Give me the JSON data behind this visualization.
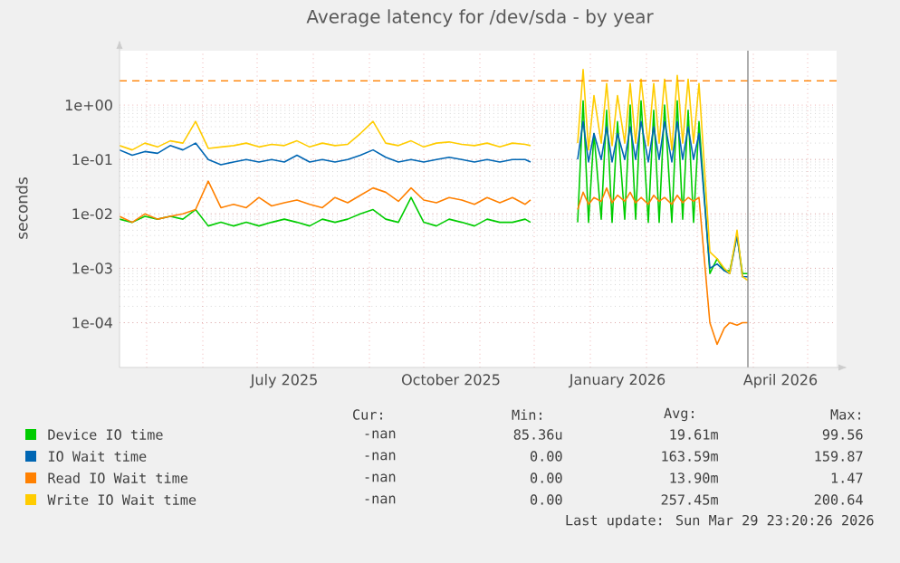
{
  "chart_data": {
    "type": "line",
    "title": "Average latency for /dev/sda - by year",
    "ylabel": "seconds",
    "log": "y",
    "grid": true,
    "legend": "bottom",
    "ylim": [
      1.5e-05,
      10
    ],
    "yticks": [
      {
        "value": 0.0001,
        "label": "1e-04"
      },
      {
        "value": 0.001,
        "label": "1e-03"
      },
      {
        "value": 0.01,
        "label": "1e-02"
      },
      {
        "value": 0.1,
        "label": "1e-01"
      },
      {
        "value": 1,
        "label": "1e+00"
      }
    ],
    "xlim": [
      "2025-04-16",
      "2026-05-17"
    ],
    "xticks": [
      {
        "value": "2025-05-01",
        "label": null
      },
      {
        "value": "2025-06-01",
        "label": null
      },
      {
        "value": "2025-07-01",
        "label": null
      },
      {
        "value": "2025-08-01",
        "label": null
      },
      {
        "value": "2025-09-01",
        "label": null
      },
      {
        "value": "2025-10-01",
        "label": null
      },
      {
        "value": "2025-11-01",
        "label": null
      },
      {
        "value": "2025-12-01",
        "label": null
      },
      {
        "value": "2026-01-01",
        "label": null
      },
      {
        "value": "2026-02-01",
        "label": null
      },
      {
        "value": "2026-03-01",
        "label": null
      },
      {
        "value": "2026-04-01",
        "label": null
      },
      {
        "value": "2026-05-01",
        "label": null
      },
      {
        "value": "2025-07-16",
        "label": "July 2025"
      },
      {
        "value": "2025-10-16",
        "label": "October 2025"
      },
      {
        "value": "2026-01-16",
        "label": "January 2026"
      },
      {
        "value": "2026-04-16",
        "label": "April 2026"
      }
    ],
    "x": [
      "2025-04-16",
      "2025-04-23",
      "2025-04-30",
      "2025-05-07",
      "2025-05-14",
      "2025-05-21",
      "2025-05-28",
      "2025-06-04",
      "2025-06-11",
      "2025-06-18",
      "2025-06-25",
      "2025-07-02",
      "2025-07-09",
      "2025-07-16",
      "2025-07-23",
      "2025-07-30",
      "2025-08-06",
      "2025-08-13",
      "2025-08-20",
      "2025-08-27",
      "2025-09-03",
      "2025-09-10",
      "2025-09-17",
      "2025-09-24",
      "2025-10-01",
      "2025-10-08",
      "2025-10-15",
      "2025-10-22",
      "2025-10-29",
      "2025-11-05",
      "2025-11-12",
      "2025-11-19",
      "2025-11-26",
      "2025-11-29",
      "2025-12-12",
      "2025-12-25",
      "2025-12-28",
      "2025-12-31",
      "2026-01-03",
      "2026-01-07",
      "2026-01-10",
      "2026-01-13",
      "2026-01-16",
      "2026-01-20",
      "2026-01-23",
      "2026-01-26",
      "2026-01-29",
      "2026-02-02",
      "2026-02-05",
      "2026-02-08",
      "2026-02-11",
      "2026-02-15",
      "2026-02-18",
      "2026-02-21",
      "2026-02-24",
      "2026-02-27",
      "2026-03-02",
      "2026-03-08",
      "2026-03-12",
      "2026-03-16",
      "2026-03-19",
      "2026-03-23",
      "2026-03-26",
      "2026-03-29"
    ],
    "series": [
      {
        "name": "Device IO time",
        "color": "#00cc00",
        "values": [
          0.008,
          0.007,
          0.009,
          0.008,
          0.009,
          0.008,
          0.012,
          0.006,
          0.007,
          0.006,
          0.007,
          0.006,
          0.007,
          0.008,
          0.007,
          0.006,
          0.008,
          0.007,
          0.008,
          0.01,
          0.012,
          0.008,
          0.007,
          0.02,
          0.007,
          0.006,
          0.008,
          0.007,
          0.006,
          0.008,
          0.007,
          0.007,
          0.008,
          0.007,
          null,
          0.007,
          1.2,
          0.007,
          0.3,
          0.008,
          0.8,
          0.007,
          0.5,
          0.008,
          1,
          0.008,
          1.2,
          0.007,
          0.8,
          0.007,
          1,
          0.007,
          1.2,
          0.008,
          0.8,
          0.007,
          0.5,
          0.0008,
          0.0015,
          0.0009,
          0.0009,
          0.004,
          0.0008,
          0.0008
        ]
      },
      {
        "name": "IO Wait time",
        "color": "#0066b3",
        "values": [
          0.15,
          0.12,
          0.14,
          0.13,
          0.18,
          0.15,
          0.2,
          0.1,
          0.08,
          0.09,
          0.1,
          0.09,
          0.1,
          0.09,
          0.12,
          0.09,
          0.1,
          0.09,
          0.1,
          0.12,
          0.15,
          0.11,
          0.09,
          0.1,
          0.09,
          0.1,
          0.11,
          0.1,
          0.09,
          0.1,
          0.09,
          0.1,
          0.1,
          0.09,
          null,
          0.1,
          0.5,
          0.09,
          0.3,
          0.1,
          0.4,
          0.09,
          0.3,
          0.1,
          0.4,
          0.1,
          0.5,
          0.09,
          0.4,
          0.1,
          0.5,
          0.09,
          0.5,
          0.1,
          0.4,
          0.1,
          0.3,
          0.001,
          0.0012,
          0.0009,
          0.0008,
          0.004,
          0.0007,
          0.0007
        ]
      },
      {
        "name": "Read IO Wait time",
        "color": "#ff8000",
        "values": [
          0.009,
          0.007,
          0.01,
          0.008,
          0.009,
          0.01,
          0.012,
          0.04,
          0.013,
          0.015,
          0.013,
          0.02,
          0.014,
          0.016,
          0.018,
          0.015,
          0.013,
          0.02,
          0.016,
          0.022,
          0.03,
          0.025,
          0.017,
          0.03,
          0.018,
          0.016,
          0.02,
          0.018,
          0.015,
          0.02,
          0.016,
          0.02,
          0.015,
          0.018,
          null,
          0.012,
          0.025,
          0.015,
          0.02,
          0.017,
          0.03,
          0.016,
          0.022,
          0.017,
          0.025,
          0.016,
          0.02,
          0.015,
          0.022,
          0.017,
          0.02,
          0.015,
          0.022,
          0.016,
          0.02,
          0.017,
          0.02,
          0.0001,
          4e-05,
          8e-05,
          0.0001,
          9e-05,
          0.0001,
          0.0001
        ]
      },
      {
        "name": "Write IO Wait time",
        "color": "#ffcc00",
        "values": [
          0.18,
          0.15,
          0.2,
          0.17,
          0.22,
          0.2,
          0.5,
          0.16,
          0.17,
          0.18,
          0.2,
          0.17,
          0.19,
          0.18,
          0.22,
          0.17,
          0.2,
          0.18,
          0.19,
          0.3,
          0.5,
          0.2,
          0.18,
          0.22,
          0.17,
          0.2,
          0.21,
          0.19,
          0.18,
          0.2,
          0.17,
          0.2,
          0.19,
          0.18,
          null,
          0.2,
          4.5,
          0.15,
          1.5,
          0.2,
          2.5,
          0.18,
          1.5,
          0.2,
          2.5,
          0.2,
          3,
          0.18,
          2.5,
          0.2,
          3,
          0.15,
          3.5,
          0.2,
          3,
          0.2,
          2.5,
          0.002,
          0.0015,
          0.001,
          0.0008,
          0.005,
          0.0007,
          0.0006
        ]
      }
    ],
    "ref_lines": [
      {
        "axis": "y",
        "value": 2.8,
        "color": "#ff8000",
        "line_style": "dashed"
      },
      {
        "axis": "x",
        "value": "2026-03-29",
        "color": "#888888",
        "line_style": "solid"
      }
    ],
    "annotations": [
      "Cur:",
      "Min:",
      "Avg:",
      "Max:",
      "-nan",
      "85.36u",
      "19.61m",
      "99.56",
      "-nan",
      "0.00",
      "163.59m",
      "159.87",
      "-nan",
      "0.00",
      "13.90m",
      "1.47",
      "-nan",
      "0.00",
      "257.45m",
      "200.64",
      "Last update: Sun Mar 29 23:20:26 2026"
    ]
  }
}
